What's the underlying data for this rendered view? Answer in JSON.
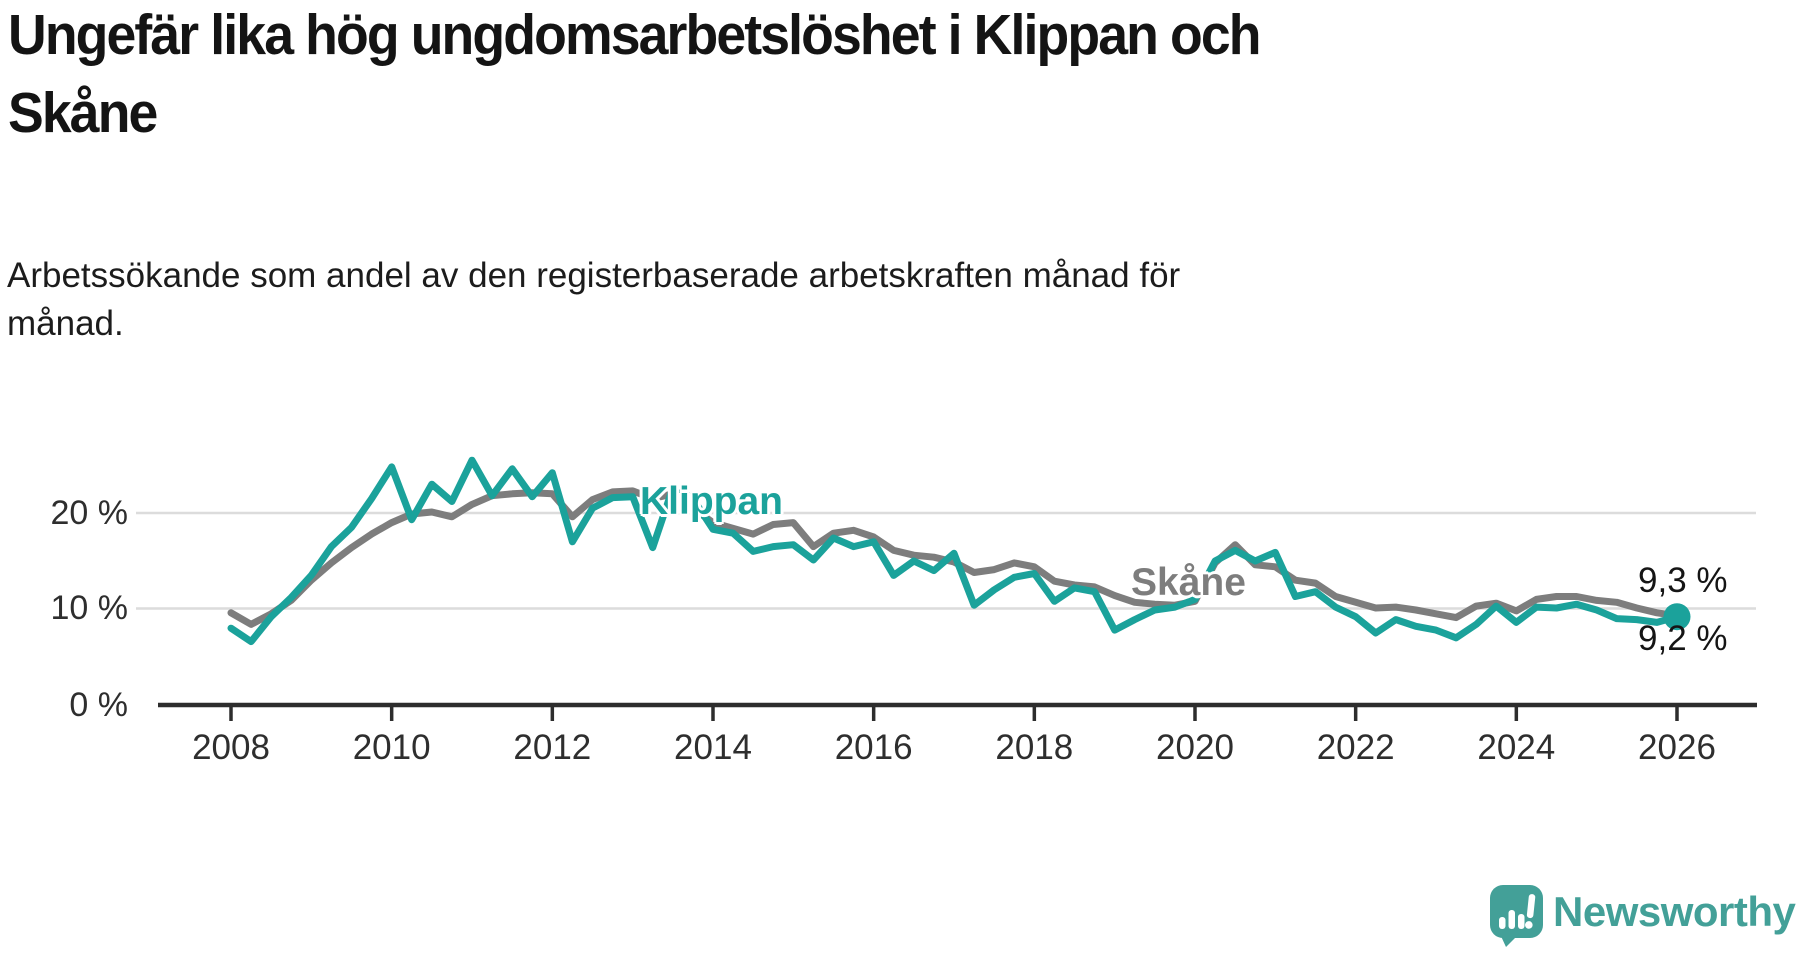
{
  "title": {
    "line1": "Ungefär lika hög ungdomsarbetslöshet i Klippan och",
    "line2": "Skåne"
  },
  "subtitle": {
    "line1": "Arbetssökande som andel av den registerbaserade arbetskraften månad för",
    "line2": "månad."
  },
  "chart_data": {
    "type": "line",
    "title": "Ungefär lika hög ungdomsarbetslöshet i Klippan och Skåne",
    "subtitle": "Arbetssökande som andel av den registerbaserade arbetskraften månad för månad.",
    "xlabel": "",
    "ylabel": "",
    "grid": "horizontal-only",
    "legend_position": "inline-labels",
    "xlim": [
      2007.2,
      2026.9
    ],
    "ylim": [
      0,
      27
    ],
    "x_ticks": [
      "2008",
      "2010",
      "2012",
      "2014",
      "2016",
      "2018",
      "2020",
      "2022",
      "2024",
      "2026"
    ],
    "y_ticks": [
      "20 %",
      "10 %",
      "0 %"
    ],
    "x": [
      2008.0,
      2008.25,
      2008.5,
      2008.75,
      2009.0,
      2009.25,
      2009.5,
      2009.75,
      2010.0,
      2010.25,
      2010.5,
      2010.75,
      2011.0,
      2011.25,
      2011.5,
      2011.75,
      2012.0,
      2012.25,
      2012.5,
      2012.75,
      2013.0,
      2013.25,
      2013.5,
      2013.75,
      2014.0,
      2014.25,
      2014.5,
      2014.75,
      2015.0,
      2015.25,
      2015.5,
      2015.75,
      2016.0,
      2016.25,
      2016.5,
      2016.75,
      2017.0,
      2017.25,
      2017.5,
      2017.75,
      2018.0,
      2018.25,
      2018.5,
      2018.75,
      2019.0,
      2019.25,
      2019.5,
      2019.75,
      2020.0,
      2020.25,
      2020.5,
      2020.75,
      2021.0,
      2021.25,
      2021.5,
      2021.75,
      2022.0,
      2022.25,
      2022.5,
      2022.75,
      2023.0,
      2023.25,
      2023.5,
      2023.75,
      2024.0,
      2024.25,
      2024.5,
      2024.75,
      2025.0,
      2025.25,
      2025.5,
      2025.75,
      2026.0
    ],
    "series": [
      {
        "name": "Klippan",
        "color": "#1BA29B",
        "values": [
          8.0,
          6.6,
          9.2,
          11.2,
          13.5,
          16.5,
          18.5,
          21.5,
          24.8,
          19.3,
          23.0,
          21.2,
          25.5,
          21.8,
          24.6,
          21.7,
          24.2,
          17.0,
          20.5,
          21.6,
          21.7,
          16.4,
          22.6,
          21.5,
          18.3,
          17.9,
          16.0,
          16.5,
          16.7,
          15.1,
          17.4,
          16.5,
          17.0,
          13.5,
          15.0,
          14.0,
          15.8,
          10.4,
          12.0,
          13.3,
          13.7,
          10.8,
          12.2,
          11.8,
          7.8,
          8.9,
          9.9,
          10.2,
          11.0,
          15.0,
          16.1,
          15.0,
          15.9,
          11.3,
          11.8,
          10.2,
          9.2,
          7.5,
          8.9,
          8.2,
          7.8,
          7.0,
          8.4,
          10.3,
          8.6,
          10.2,
          10.1,
          10.5,
          9.9,
          9.0,
          8.9,
          8.6,
          9.2
        ]
      },
      {
        "name": "Skåne",
        "color": "#7D7D7D",
        "values": [
          9.6,
          8.4,
          9.5,
          10.9,
          13.0,
          14.8,
          16.4,
          17.8,
          19.0,
          19.9,
          20.1,
          19.6,
          20.9,
          21.8,
          22.0,
          22.1,
          22.0,
          19.6,
          21.4,
          22.2,
          22.3,
          21.5,
          22.0,
          20.5,
          19.0,
          18.4,
          17.8,
          18.8,
          19.0,
          16.5,
          17.9,
          18.2,
          17.5,
          16.1,
          15.6,
          15.4,
          14.9,
          13.8,
          14.1,
          14.8,
          14.4,
          12.9,
          12.5,
          12.3,
          11.4,
          10.7,
          10.5,
          10.4,
          10.8,
          14.8,
          16.7,
          14.6,
          14.4,
          13.0,
          12.7,
          11.3,
          10.7,
          10.1,
          10.2,
          9.9,
          9.5,
          9.1,
          10.3,
          10.6,
          9.8,
          11.0,
          11.3,
          11.3,
          10.9,
          10.7,
          10.1,
          9.6,
          9.3
        ]
      }
    ],
    "end_labels": [
      {
        "series": "Skåne",
        "text": "9,3 %"
      },
      {
        "series": "Klippan",
        "text": "9,2 %"
      }
    ],
    "end_dot_series": "Klippan"
  },
  "branding": {
    "logo_text": "Newsworthy",
    "logo_color": "#43A098",
    "logo_icon": "newsworthy-speech-bubble-bar-chart-icon"
  },
  "colors": {
    "klippan_line": "#1BA29B",
    "skane_line": "#7D7D7D",
    "gridline": "#dcdcdc",
    "axis": "#2d2d2d",
    "title_text": "#141414"
  }
}
